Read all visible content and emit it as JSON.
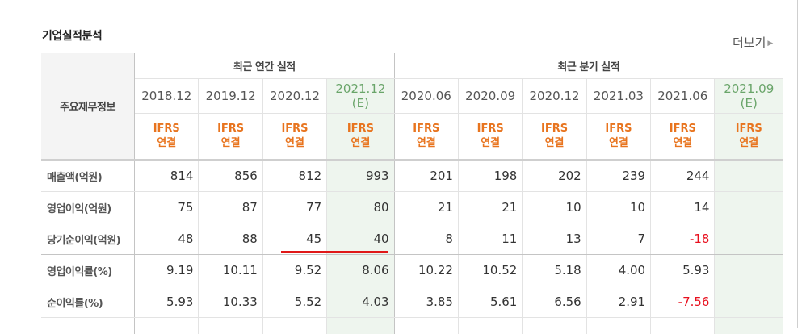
{
  "section": {
    "title": "기업실적분석",
    "more": "더보기"
  },
  "table": {
    "label_header": "주요재무정보",
    "group_annual": "최근 연간 실적",
    "group_quarter": "최근 분기 실적",
    "periods": [
      {
        "date": "2018.12",
        "sub": "",
        "ifrs": "IFRS",
        "basis": "연결"
      },
      {
        "date": "2019.12",
        "sub": "",
        "ifrs": "IFRS",
        "basis": "연결"
      },
      {
        "date": "2020.12",
        "sub": "",
        "ifrs": "IFRS",
        "basis": "연결"
      },
      {
        "date": "2021.12",
        "sub": "(E)",
        "ifrs": "IFRS",
        "basis": "연결"
      },
      {
        "date": "2020.06",
        "sub": "",
        "ifrs": "IFRS",
        "basis": "연결"
      },
      {
        "date": "2020.09",
        "sub": "",
        "ifrs": "IFRS",
        "basis": "연결"
      },
      {
        "date": "2020.12",
        "sub": "",
        "ifrs": "IFRS",
        "basis": "연결"
      },
      {
        "date": "2021.03",
        "sub": "",
        "ifrs": "IFRS",
        "basis": "연결"
      },
      {
        "date": "2021.06",
        "sub": "",
        "ifrs": "IFRS",
        "basis": "연결"
      },
      {
        "date": "2021.09",
        "sub": "(E)",
        "ifrs": "IFRS",
        "basis": "연결"
      }
    ],
    "rows": [
      {
        "label": "매출액(억원)",
        "values": [
          "814",
          "856",
          "812",
          "993",
          "201",
          "198",
          "202",
          "239",
          "244",
          ""
        ]
      },
      {
        "label": "영업이익(억원)",
        "values": [
          "75",
          "87",
          "77",
          "80",
          "21",
          "21",
          "10",
          "10",
          "14",
          ""
        ]
      },
      {
        "label": "당기순이익(억원)",
        "values": [
          "48",
          "88",
          "45",
          "40",
          "8",
          "11",
          "13",
          "7",
          "-18",
          ""
        ]
      },
      {
        "label": "영업이익률(%)",
        "values": [
          "9.19",
          "10.11",
          "9.52",
          "8.06",
          "10.22",
          "10.52",
          "5.18",
          "4.00",
          "5.93",
          ""
        ]
      },
      {
        "label": "순이익률(%)",
        "values": [
          "5.93",
          "10.33",
          "5.52",
          "4.03",
          "3.85",
          "5.61",
          "6.56",
          "2.91",
          "-7.56",
          ""
        ]
      }
    ]
  },
  "colors": {
    "accent_orange": "#e8741e",
    "negative_red": "#e8101e",
    "estimate_bg": "#eef5ee",
    "underline_red": "#e01818"
  }
}
